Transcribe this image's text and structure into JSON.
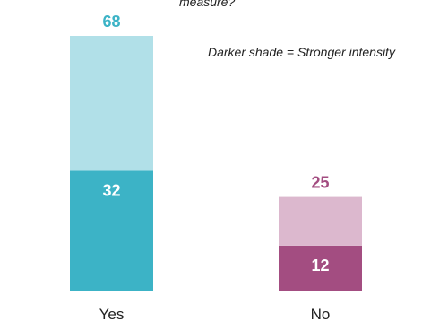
{
  "title_fragment": "measure?",
  "note": "Darker shade = Stronger intensity",
  "colors": {
    "yes_dark": "#3cb3c6",
    "yes_light": "#b1e0e8",
    "no_dark": "#a34d81",
    "no_light": "#dcb8ce",
    "total_yes": "#3cb3c6",
    "total_no": "#a34d81",
    "inner_label": "#ffffff",
    "axis": "#bfbfbf",
    "tick": "#222222"
  },
  "chart_data": {
    "type": "bar",
    "stacked": true,
    "categories": [
      "Yes",
      "No"
    ],
    "series": [
      {
        "values": [
          32,
          12
        ]
      },
      {
        "values": [
          36,
          13
        ]
      }
    ],
    "totals": [
      68,
      25
    ],
    "ylim": [
      0,
      70
    ]
  }
}
